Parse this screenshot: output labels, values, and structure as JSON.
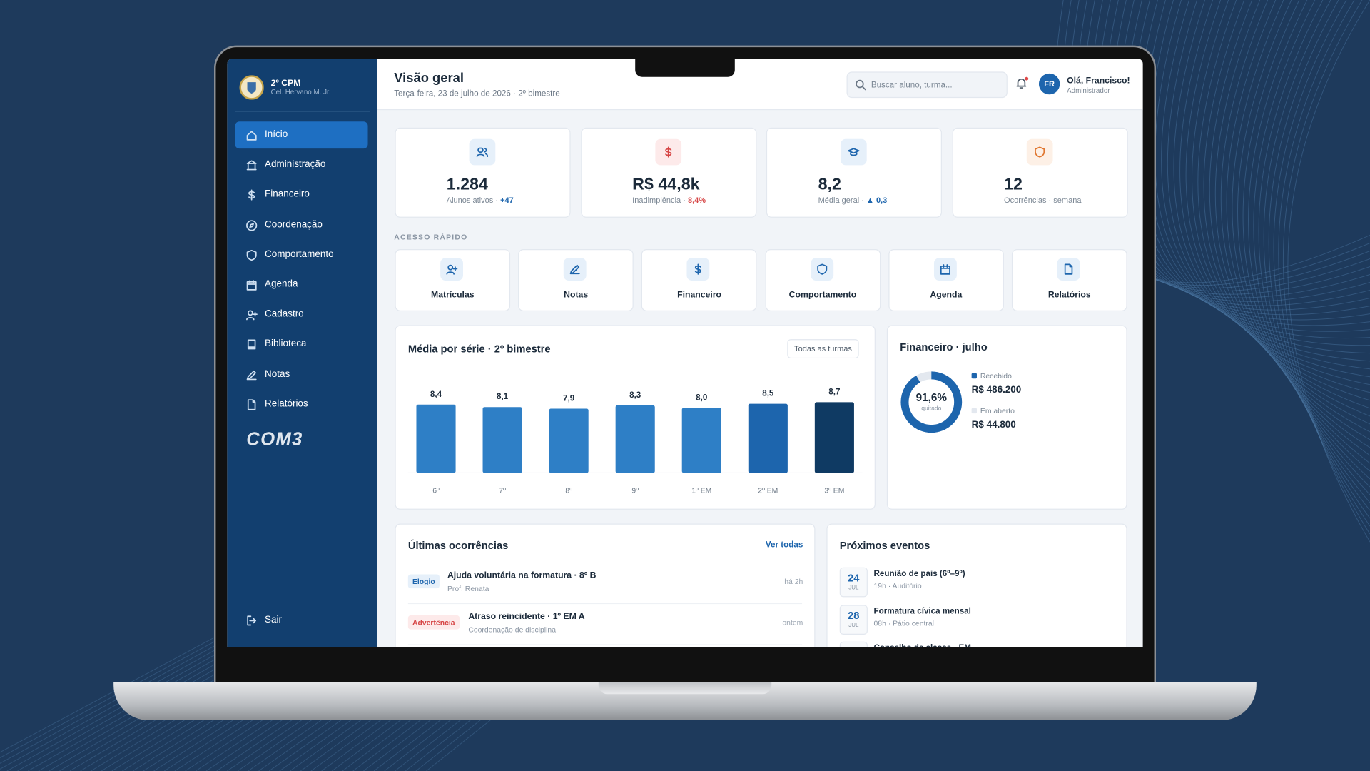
{
  "sidebar": {
    "school": "2º CPM",
    "subtitle": "Cel. Hervano M. Jr.",
    "menu": [
      "Início",
      "Administração",
      "Financeiro",
      "Coordenação",
      "Comportamento",
      "Agenda",
      "Cadastro",
      "Biblioteca",
      "Notas",
      "Relatórios"
    ],
    "brand": "COM3",
    "logout": "Sair"
  },
  "header": {
    "title": "Visão geral",
    "date": "Terça-feira, 23 de julho de 2026 · 2º bimestre",
    "search_placeholder": "Buscar aluno, turma...",
    "avatar": "FR",
    "greeting": "Olá, Francisco!",
    "role": "Administrador"
  },
  "stats": [
    {
      "value": "1.284",
      "label": "Alunos ativos ·",
      "delta": "+47"
    },
    {
      "value": "R$ 44,8k",
      "label": "Inadimplência ·",
      "delta": "8,4%"
    },
    {
      "value": "8,2",
      "label": "Média geral ·",
      "delta": "▲ 0,3"
    },
    {
      "value": "12",
      "label": "Ocorrências · semana"
    }
  ],
  "quick_access": {
    "title": "ACESSO RÁPIDO",
    "items": [
      "Matrículas",
      "Notas",
      "Financeiro",
      "Comportamento",
      "Agenda",
      "Relatórios"
    ]
  },
  "bar_chart": {
    "title": "Média por série · 2º bimestre",
    "filter": "Todas as turmas",
    "categories": [
      "6º",
      "7º",
      "8º",
      "9º",
      "1º EM",
      "2º EM",
      "3º EM"
    ],
    "values": [
      8.4,
      8.1,
      7.9,
      8.3,
      8.0,
      8.5,
      8.7
    ],
    "value_labels": [
      "8,4",
      "8,1",
      "7,9",
      "8,3",
      "8,0",
      "8,5",
      "8,7"
    ],
    "colors": [
      "#2e7fc6",
      "#2e7fc6",
      "#2e7fc6",
      "#2e7fc6",
      "#2e7fc6",
      "#1d65ad",
      "#0f3a63"
    ],
    "ylim": [
      0,
      10
    ]
  },
  "finance": {
    "title": "Financeiro · julho",
    "percent": 91.6,
    "percent_label": "91,6%",
    "percent_caption": "quitado",
    "legend": [
      {
        "name": "Recebido",
        "value": "R$ 486.200",
        "color": "#1d65ad"
      },
      {
        "name": "Em aberto",
        "value": "R$ 44.800",
        "color": "#e3e8ef"
      }
    ]
  },
  "occurrences": {
    "title": "Últimas ocorrências",
    "link": "Ver todas",
    "items": [
      {
        "tag": "Elogio",
        "title": "Ajuda voluntária na formatura · 8º B",
        "author": "Prof. Renata",
        "time": "há 2h"
      },
      {
        "tag": "Advertência",
        "title": "Atraso reincidente · 1º EM A",
        "author": "Coordenação de disciplina",
        "time": "ontem"
      }
    ]
  },
  "events": {
    "title": "Próximos eventos",
    "items": [
      {
        "day": "24",
        "month": "JUL",
        "title": "Reunião de pais (6º–9º)",
        "detail": "19h · Auditório"
      },
      {
        "day": "28",
        "month": "JUL",
        "title": "Formatura cívica mensal",
        "detail": "08h · Pátio central"
      },
      {
        "title": "Conselho de classe · EM"
      }
    ]
  }
}
